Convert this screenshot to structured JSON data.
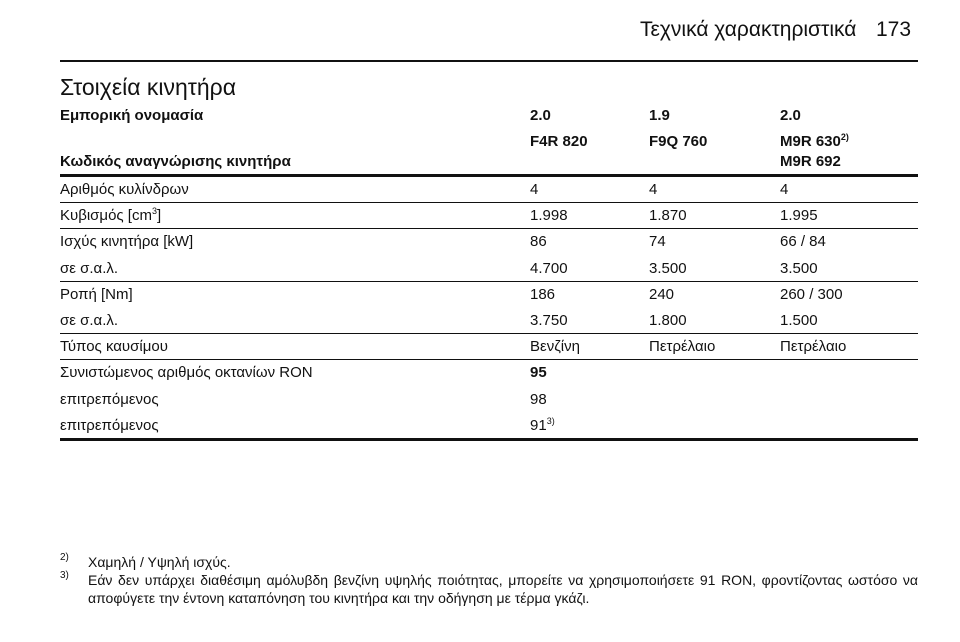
{
  "header": {
    "section": "Τεχνικά χαρακτηριστικά",
    "page": "173"
  },
  "title": "Στοιχεία κινητήρα",
  "table": {
    "head": [
      [
        "Εμπορική ονομασία",
        "2.0",
        "1.9",
        "2.0"
      ],
      [
        null,
        "F4R 820",
        "F9Q 760",
        {
          "text": "M9R 630",
          "sup": "2)"
        }
      ],
      [
        "Κωδικός αναγνώρισης κινητήρα",
        null,
        null,
        "M9R 692"
      ]
    ],
    "groups": [
      [
        [
          "Αριθμός κυλίνδρων",
          "4",
          "4",
          "4"
        ]
      ],
      [
        [
          {
            "text": "Κυβισμός [cm",
            "sup": "3",
            "tail": "]"
          },
          "1.998",
          "1.870",
          "1.995"
        ]
      ],
      [
        [
          "Ισχύς κινητήρα [kW]",
          "86",
          "74",
          "66 / 84"
        ],
        [
          "σε σ.α.λ.",
          "4.700",
          "3.500",
          "3.500"
        ]
      ],
      [
        [
          "Ροπή [Nm]",
          "186",
          "240",
          "260 / 300"
        ],
        [
          "σε σ.α.λ.",
          "3.750",
          "1.800",
          "1.500"
        ]
      ],
      [
        [
          "Τύπος καυσίμου",
          "Βενζίνη",
          "Πετρέλαιο",
          "Πετρέλαιο"
        ]
      ],
      [
        [
          "Συνιστώμενος αριθμός οκτανίων RON",
          "95",
          null,
          null
        ],
        [
          "επιτρεπόμενος",
          "98",
          null,
          null
        ],
        [
          "επιτρεπόμενος",
          {
            "text": "91",
            "sup": "3)"
          },
          null,
          null
        ]
      ]
    ]
  },
  "footnotes": [
    {
      "mark": "2)",
      "text": "Χαμηλή / Υψηλή ισχύς."
    },
    {
      "mark": "3)",
      "text": "Εάν δεν υπάρχει διαθέσιμη αμόλυβδη βενζίνη υψηλής ποιότητας, μπορείτε να χρησιμοποιήσετε 91 RON, φροντίζοντας ωστόσο να αποφύγετε την έντονη καταπόνηση του κινητήρα και την οδήγηση με τέρμα γκάζι."
    }
  ]
}
